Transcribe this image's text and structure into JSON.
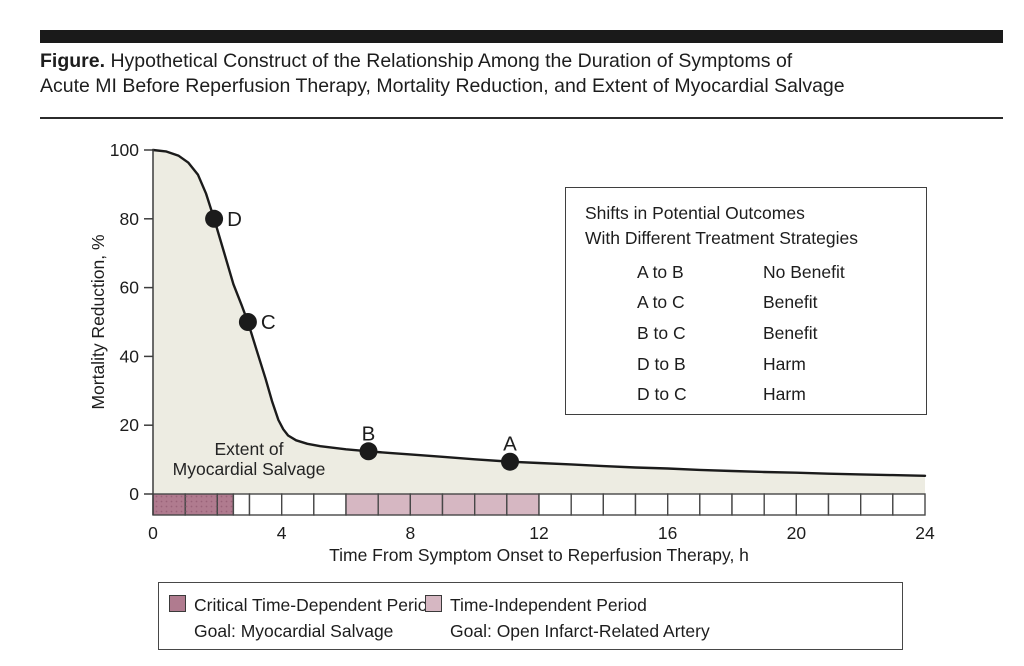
{
  "header": {
    "figure_label": "Figure.",
    "title_line1_rest": "Hypothetical Construct of the Relationship Among the Duration of Symptoms of",
    "title_line2": "Acute MI Before Reperfusion Therapy, Mortality Reduction, and Extent of Myocardial Salvage"
  },
  "chart_data": {
    "type": "line",
    "title": "Hypothetical Construct of the Relationship Among the Duration of Symptoms of Acute MI Before Reperfusion Therapy, Mortality Reduction, and Extent of Myocardial Salvage",
    "xlabel": "Time From Symptom Onset to Reperfusion Therapy, h",
    "ylabel": "Mortality Reduction, %",
    "xlim": [
      0,
      24
    ],
    "ylim": [
      0,
      100
    ],
    "x_ticks": [
      0,
      4,
      8,
      12,
      16,
      20,
      24
    ],
    "y_ticks": [
      0,
      20,
      40,
      60,
      80,
      100
    ],
    "grid": false,
    "curve_color": "#1b1b1b",
    "area_fill": "#edece2",
    "curve": [
      [
        0,
        100
      ],
      [
        0.4,
        99.6
      ],
      [
        0.8,
        98.3
      ],
      [
        1.1,
        96.3
      ],
      [
        1.4,
        92.8
      ],
      [
        1.65,
        87.3
      ],
      [
        1.9,
        80
      ],
      [
        2.2,
        70.5
      ],
      [
        2.5,
        61
      ],
      [
        2.75,
        55
      ],
      [
        2.95,
        50
      ],
      [
        3.2,
        42.5
      ],
      [
        3.5,
        33.5
      ],
      [
        3.7,
        27
      ],
      [
        3.9,
        21.5
      ],
      [
        4.05,
        18.8
      ],
      [
        4.2,
        17
      ],
      [
        4.45,
        15.6
      ],
      [
        4.8,
        14.6
      ],
      [
        5.2,
        13.9
      ],
      [
        6,
        13
      ],
      [
        6.7,
        12.4
      ],
      [
        7.4,
        11.9
      ],
      [
        8,
        11.5
      ],
      [
        9,
        10.8
      ],
      [
        10,
        10.1
      ],
      [
        11.1,
        9.4
      ],
      [
        12,
        9
      ],
      [
        13,
        8.6
      ],
      [
        14,
        8.1
      ],
      [
        15,
        7.7
      ],
      [
        16,
        7.4
      ],
      [
        17,
        7
      ],
      [
        18,
        6.7
      ],
      [
        19,
        6.4
      ],
      [
        20,
        6.2
      ],
      [
        21,
        5.9
      ],
      [
        22,
        5.7
      ],
      [
        23,
        5.5
      ],
      [
        24,
        5.3
      ]
    ],
    "points": [
      {
        "label": "D",
        "x": 1.9,
        "y": 80,
        "label_side": "right"
      },
      {
        "label": "C",
        "x": 2.95,
        "y": 50,
        "label_side": "right"
      },
      {
        "label": "B",
        "x": 6.7,
        "y": 12.4,
        "label_side": "above"
      },
      {
        "label": "A",
        "x": 11.1,
        "y": 9.4,
        "label_side": "above"
      }
    ],
    "area_label_line1": "Extent of",
    "area_label_line2": "Myocardial Salvage",
    "strip": {
      "colors": {
        "critical": "#b07b8f",
        "critical_dot": "#996279",
        "independent": "#d6b7c2",
        "none": "#ffffff",
        "border": "#474747"
      },
      "segments": [
        {
          "from": 0,
          "to": 1,
          "kind": "critical"
        },
        {
          "from": 1,
          "to": 2,
          "kind": "critical"
        },
        {
          "from": 2,
          "to": 2.5,
          "kind": "critical"
        },
        {
          "from": 2.5,
          "to": 3,
          "kind": "none"
        },
        {
          "from": 3,
          "to": 4,
          "kind": "none"
        },
        {
          "from": 4,
          "to": 5,
          "kind": "none"
        },
        {
          "from": 5,
          "to": 6,
          "kind": "none"
        },
        {
          "from": 6,
          "to": 7,
          "kind": "independent"
        },
        {
          "from": 7,
          "to": 8,
          "kind": "independent"
        },
        {
          "from": 8,
          "to": 9,
          "kind": "independent"
        },
        {
          "from": 9,
          "to": 10,
          "kind": "independent"
        },
        {
          "from": 10,
          "to": 11,
          "kind": "independent"
        },
        {
          "from": 11,
          "to": 12,
          "kind": "independent"
        },
        {
          "from": 12,
          "to": 13,
          "kind": "none"
        },
        {
          "from": 13,
          "to": 14,
          "kind": "none"
        },
        {
          "from": 14,
          "to": 15,
          "kind": "none"
        },
        {
          "from": 15,
          "to": 16,
          "kind": "none"
        },
        {
          "from": 16,
          "to": 17,
          "kind": "none"
        },
        {
          "from": 17,
          "to": 18,
          "kind": "none"
        },
        {
          "from": 18,
          "to": 19,
          "kind": "none"
        },
        {
          "from": 19,
          "to": 20,
          "kind": "none"
        },
        {
          "from": 20,
          "to": 21,
          "kind": "none"
        },
        {
          "from": 21,
          "to": 22,
          "kind": "none"
        },
        {
          "from": 22,
          "to": 23,
          "kind": "none"
        },
        {
          "from": 23,
          "to": 24,
          "kind": "none"
        }
      ]
    },
    "outcomes_table": {
      "title_line1": "Shifts in Potential Outcomes",
      "title_line2": "With Different Treatment Strategies",
      "rows": [
        {
          "shift": "A to B",
          "outcome": "No Benefit"
        },
        {
          "shift": "A to C",
          "outcome": "Benefit"
        },
        {
          "shift": "B to C",
          "outcome": "Benefit"
        },
        {
          "shift": "D to B",
          "outcome": "Harm"
        },
        {
          "shift": "D to C",
          "outcome": "Harm"
        }
      ]
    },
    "period_legend": {
      "items": [
        {
          "swatch": "critical",
          "line1": "Critical Time-Dependent Period",
          "line2": "Goal: Myocardial Salvage"
        },
        {
          "swatch": "independent",
          "line1": "Time-Independent Period",
          "line2": "Goal: Open Infarct-Related Artery"
        }
      ]
    }
  }
}
